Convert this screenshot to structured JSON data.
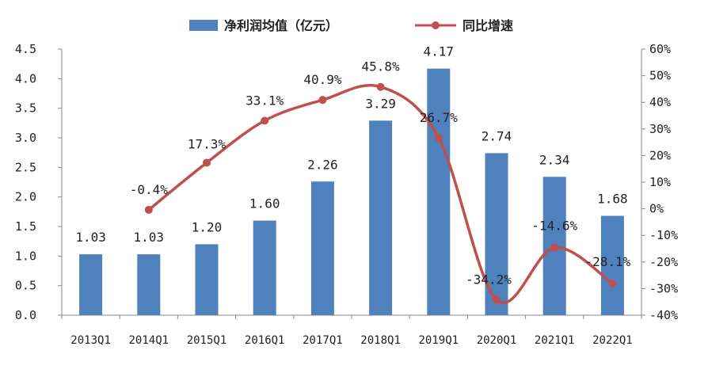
{
  "chart_data": {
    "type": "bar",
    "categories": [
      "2013Q1",
      "2014Q1",
      "2015Q1",
      "2016Q1",
      "2017Q1",
      "2018Q1",
      "2019Q1",
      "2020Q1",
      "2021Q1",
      "2022Q1"
    ],
    "series": [
      {
        "name": "净利润均值（亿元）",
        "type": "bar",
        "axis": "left",
        "color": "#4F81BD",
        "values": [
          1.03,
          1.03,
          1.2,
          1.6,
          2.26,
          3.29,
          4.17,
          2.74,
          2.34,
          1.68
        ],
        "labels": [
          "1.03",
          "1.03",
          "1.20",
          "1.60",
          "2.26",
          "3.29",
          "4.17",
          "2.74",
          "2.34",
          "1.68"
        ]
      },
      {
        "name": "同比增速",
        "type": "line",
        "axis": "right",
        "color": "#C0504D",
        "values": [
          null,
          -0.4,
          17.3,
          33.1,
          40.9,
          45.8,
          26.7,
          -34.2,
          -14.6,
          -28.1
        ],
        "labels": [
          null,
          "-0.4%",
          "17.3%",
          "33.1%",
          "40.9%",
          "45.8%",
          "26.7%",
          "-34.2%",
          "-14.6%",
          "-28.1%"
        ]
      }
    ],
    "left_axis": {
      "ylim": [
        0,
        4.5
      ],
      "ticks": [
        "0.0",
        "0.5",
        "1.0",
        "1.5",
        "2.0",
        "2.5",
        "3.0",
        "3.5",
        "4.0",
        "4.5"
      ]
    },
    "right_axis": {
      "ylim": [
        -40,
        60
      ],
      "ticks": [
        "-40%",
        "-30%",
        "-20%",
        "-10%",
        "0%",
        "10%",
        "20%",
        "30%",
        "40%",
        "50%",
        "60%"
      ]
    },
    "grid": false,
    "legend_position": "top-center"
  }
}
